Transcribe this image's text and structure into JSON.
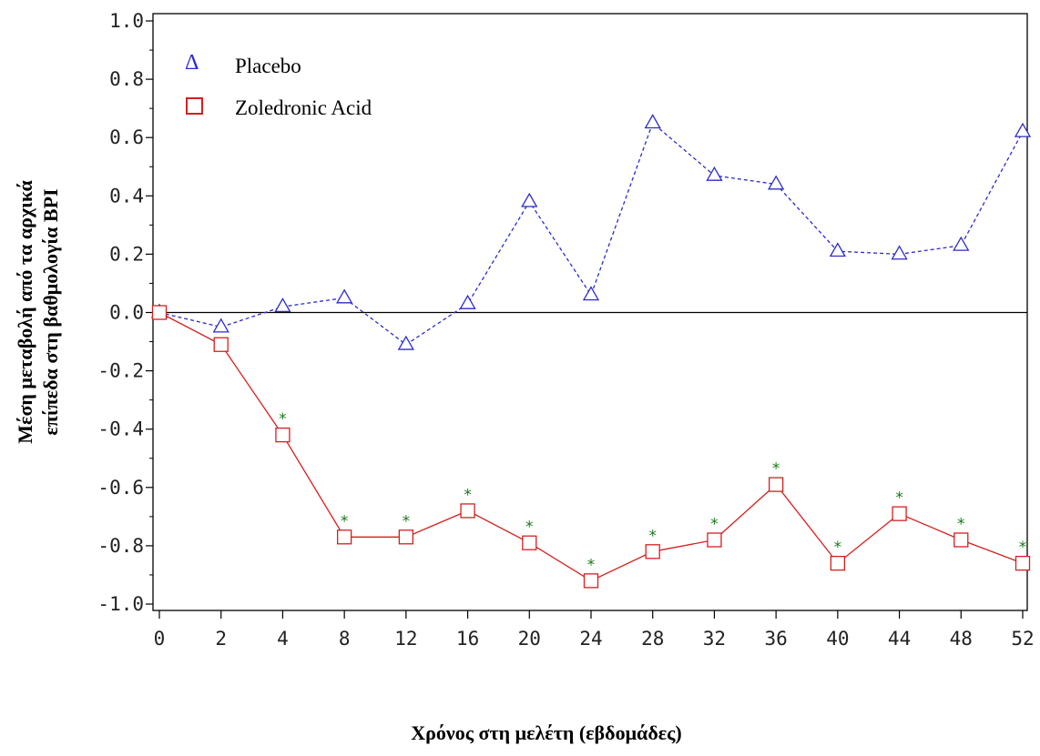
{
  "chart_data": {
    "type": "line",
    "title": "",
    "xlabel": "Χρόνος στη μελέτη (εβδομάδες)",
    "ylabel_lines": [
      "Μέση μεταβολή από τα αρχικά",
      "επίπεδα στη βαθμολογία BPI"
    ],
    "ylim": [
      -1.0,
      1.0
    ],
    "yticks": [
      "1.0",
      "0.8",
      "0.6",
      "0.4",
      "0.2",
      "0.0",
      "-0.2",
      "-0.4",
      "-0.6",
      "-0.8",
      "-1.0"
    ],
    "categories": [
      "0",
      "2",
      "4",
      "8",
      "12",
      "16",
      "20",
      "24",
      "28",
      "32",
      "36",
      "40",
      "44",
      "48",
      "52"
    ],
    "reference_line": 0.0,
    "significance_marker": "*",
    "legend_position": "top-left",
    "series": [
      {
        "name": "Placebo",
        "marker": "triangle",
        "line_style": "dashed",
        "color": "#2b2bc8",
        "legend_symbol": "Δ",
        "values": [
          0.0,
          -0.05,
          0.02,
          0.05,
          -0.11,
          0.03,
          0.38,
          0.06,
          0.65,
          0.47,
          0.44,
          0.21,
          0.2,
          0.23,
          0.62
        ]
      },
      {
        "name": "Zoledronic Acid",
        "marker": "square",
        "line_style": "solid",
        "color": "#d42020",
        "values": [
          0.0,
          -0.11,
          -0.42,
          -0.77,
          -0.77,
          -0.68,
          -0.79,
          -0.92,
          -0.82,
          -0.78,
          -0.59,
          -0.86,
          -0.69,
          -0.78,
          -0.86
        ],
        "significant": [
          false,
          false,
          true,
          true,
          true,
          true,
          true,
          true,
          true,
          true,
          true,
          true,
          true,
          true,
          true
        ]
      }
    ]
  }
}
